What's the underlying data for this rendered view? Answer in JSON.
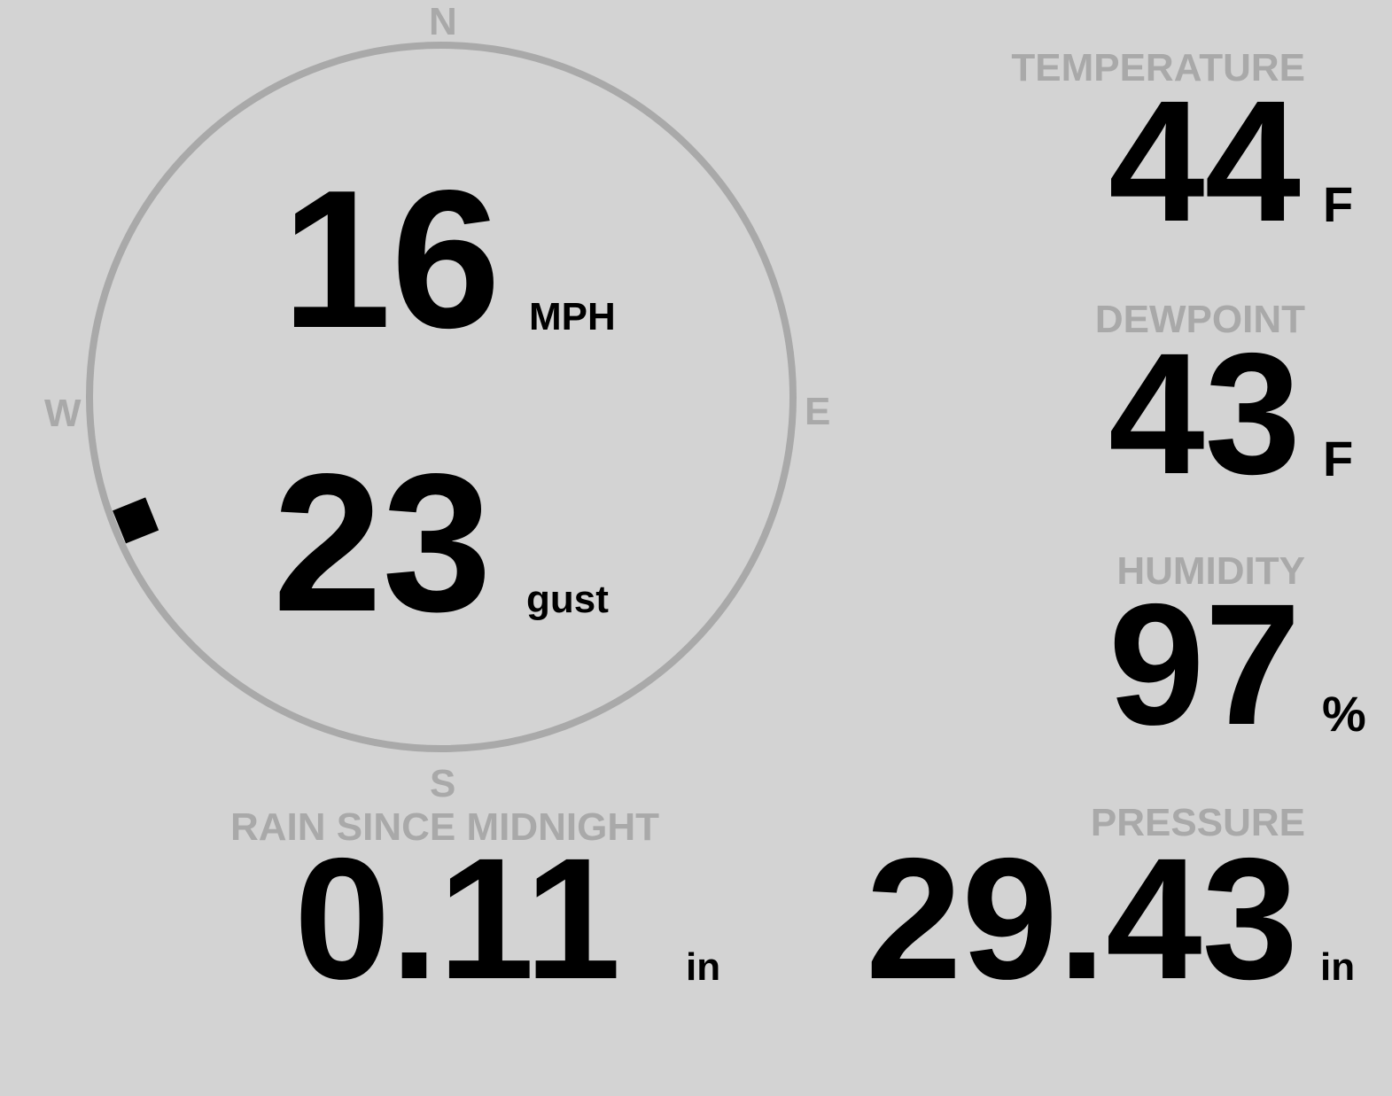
{
  "colors": {
    "background": "#d3d3d3",
    "label": "#a9a9a9",
    "value": "#000000",
    "compass_ring": "#a9a9a9"
  },
  "wind": {
    "compass": {
      "n": "N",
      "e": "E",
      "s": "S",
      "w": "W"
    },
    "direction_deg": 248,
    "speed": "16",
    "speed_unit": "MPH",
    "gust": "23",
    "gust_unit": "gust"
  },
  "temperature": {
    "label": "TEMPERATURE",
    "value": "44",
    "unit": "F"
  },
  "dewpoint": {
    "label": "DEWPOINT",
    "value": "43",
    "unit": "F"
  },
  "humidity": {
    "label": "HUMIDITY",
    "value": "97",
    "unit": "%"
  },
  "rain": {
    "label": "RAIN SINCE MIDNIGHT",
    "value": "0.11",
    "unit": "in"
  },
  "pressure": {
    "label": "PRESSURE",
    "value": "29.43",
    "unit": "in"
  }
}
